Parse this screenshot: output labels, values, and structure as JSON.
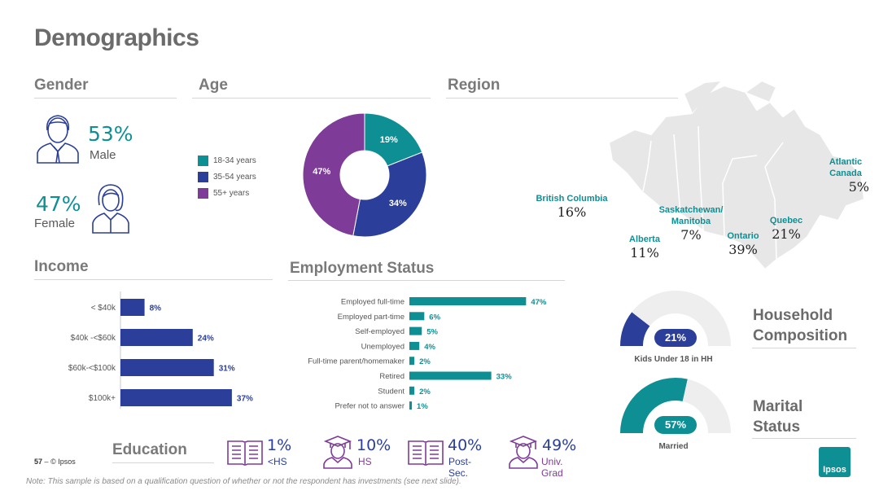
{
  "title": "Demographics",
  "sections": {
    "gender": "Gender",
    "age": "Age",
    "region": "Region",
    "income": "Income",
    "employment": "Employment Status",
    "education": "Education",
    "household": "Household Composition",
    "marital": "Marital Status"
  },
  "gender": {
    "male_pct": "53%",
    "male_label": "Male",
    "female_pct": "47%",
    "female_label": "Female"
  },
  "colors": {
    "teal": "#0e8f94",
    "navy": "#2b3f9a",
    "purple": "#7e3b98",
    "grey": "#e6e6e6"
  },
  "footer": {
    "page": "57",
    "sep": "–",
    "copyright": "© Ipsos",
    "logo": "Ipsos"
  },
  "note": "Note: This sample is based on a qualification question of whether or not the respondent has investments (see next slide).",
  "chart_data": [
    {
      "type": "pie",
      "id": "age",
      "categories": [
        "18-34 years",
        "35-54 years",
        "55+ years"
      ],
      "values": [
        19,
        34,
        47
      ],
      "labels": [
        "19%",
        "34%",
        "47%"
      ],
      "colors": [
        "#0e8f94",
        "#2b3f9a",
        "#7e3b98"
      ],
      "legend": "left"
    },
    {
      "type": "bar",
      "id": "income",
      "orientation": "horizontal",
      "categories": [
        "< $40k",
        "$40k -<$60k",
        "$60k-<$100k",
        "$100k+"
      ],
      "values": [
        8,
        24,
        31,
        37
      ],
      "labels": [
        "8%",
        "24%",
        "31%",
        "37%"
      ],
      "color": "#2b3f9a"
    },
    {
      "type": "bar",
      "id": "employment",
      "orientation": "horizontal",
      "categories": [
        "Employed full-time",
        "Employed part-time",
        "Self-employed",
        "Unemployed",
        "Full-time parent/homemaker",
        "Retired",
        "Student",
        "Prefer not to answer"
      ],
      "values": [
        47,
        6,
        5,
        4,
        2,
        33,
        2,
        1
      ],
      "labels": [
        "47%",
        "6%",
        "5%",
        "4%",
        "2%",
        "33%",
        "2%",
        "1%"
      ],
      "color": "#0e8f94"
    },
    {
      "type": "table",
      "id": "region",
      "regions": [
        {
          "name": "British Columbia",
          "value": "16%"
        },
        {
          "name": "Alberta",
          "value": "11%"
        },
        {
          "name": "Saskatchewan/ Manitoba",
          "value": "7%"
        },
        {
          "name": "Ontario",
          "value": "39%"
        },
        {
          "name": "Quebec",
          "value": "21%"
        },
        {
          "name": "Atlantic Canada",
          "value": "5%"
        }
      ]
    },
    {
      "type": "table",
      "id": "education",
      "items": [
        {
          "pct": "1%",
          "label": "<HS",
          "icon": "book-icon",
          "color": "#2b3f9a"
        },
        {
          "pct": "10%",
          "label": "HS",
          "icon": "graduate-icon",
          "color": "#7e3b98"
        },
        {
          "pct": "40%",
          "label": "Post-Sec.",
          "icon": "book-icon",
          "color": "#2b3f9a"
        },
        {
          "pct": "49%",
          "label": "Univ. Grad",
          "icon": "graduate-icon",
          "color": "#7e3b98"
        }
      ]
    },
    {
      "type": "pie",
      "id": "kids",
      "subtype": "gauge",
      "value": 21,
      "label": "21%",
      "caption": "Kids Under 18 in HH",
      "color": "#2b3f9a"
    },
    {
      "type": "pie",
      "id": "married",
      "subtype": "gauge",
      "value": 57,
      "label": "57%",
      "caption": "Married",
      "color": "#0e8f94"
    }
  ]
}
